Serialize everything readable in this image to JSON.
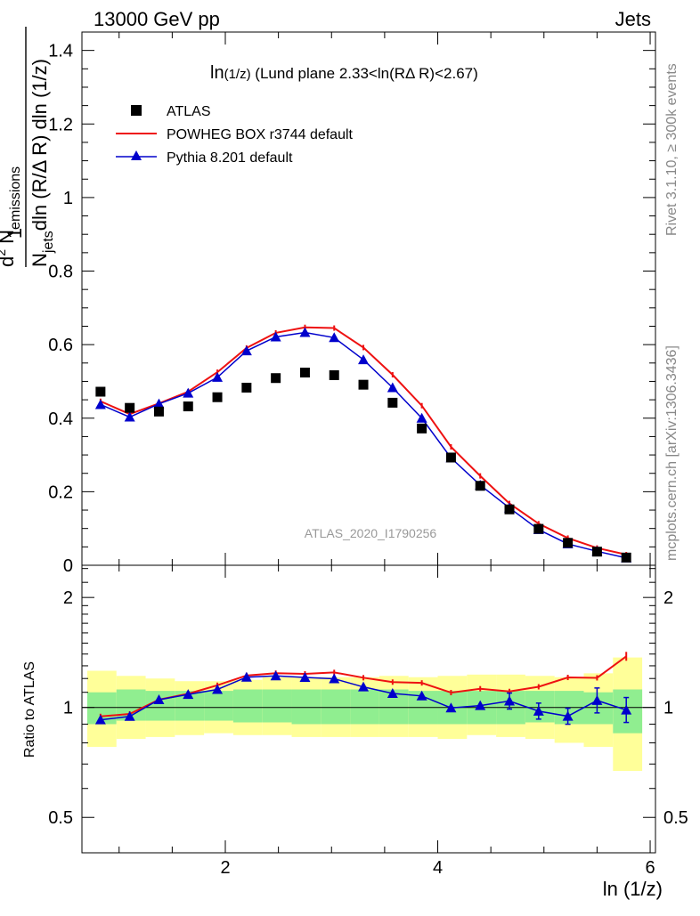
{
  "header": {
    "left": "13000 GeV pp",
    "right": "Jets"
  },
  "side_labels": {
    "rivet": "Rivet 3.1.10, ≥ 300k events",
    "mcplots": "mcplots.cern.ch [arXiv:1306.3436]"
  },
  "colors": {
    "atlas": "#000000",
    "powheg": "#ee1111",
    "pythia": "#0000cc",
    "band_inner": "#90ee90",
    "band_outer": "#ffff99"
  },
  "chart_data": [
    {
      "type": "scatter",
      "title_main": "ln",
      "title_sub": "(1/z)",
      "title_rest": " (Lund plane 2.33<ln(RΔ R)<2.67)",
      "ylabel_top": "1",
      "ylabel_bottom_a": "N",
      "ylabel_bottom_sub": "jets",
      "ylabel_bottom_b": "dln (R/Δ R) dln (1/z)",
      "ylabel_num_a": "d",
      "ylabel_num_sup": "2",
      "ylabel_num_b": " N",
      "ylabel_num_sub": "emissions",
      "watermark": "ATLAS_2020_I1790256",
      "ylim": [
        0,
        1.45
      ],
      "xlim": [
        0.65,
        6.05
      ],
      "y_ticks": [
        "0",
        "0.2",
        "0.4",
        "0.6",
        "0.8",
        "1",
        "1.2",
        "1.4"
      ],
      "legend_position": "top-left",
      "x": [
        0.825,
        1.1,
        1.375,
        1.65,
        1.925,
        2.2,
        2.475,
        2.75,
        3.025,
        3.3,
        3.575,
        3.85,
        4.125,
        4.4,
        4.675,
        4.95,
        5.225,
        5.5,
        5.775
      ],
      "series": [
        {
          "name": "ATLAS",
          "values": [
            0.472,
            0.428,
            0.418,
            0.432,
            0.457,
            0.483,
            0.509,
            0.524,
            0.517,
            0.491,
            0.442,
            0.372,
            0.293,
            0.216,
            0.152,
            0.099,
            0.061,
            0.037,
            0.021
          ]
        },
        {
          "name": "POWHEG BOX r3744 default",
          "values": [
            0.446,
            0.411,
            0.44,
            0.472,
            0.525,
            0.591,
            0.632,
            0.647,
            0.645,
            0.592,
            0.518,
            0.434,
            0.322,
            0.243,
            0.168,
            0.113,
            0.074,
            0.047,
            0.029
          ]
        },
        {
          "name": "Pythia 8.201 default",
          "values": [
            0.437,
            0.403,
            0.439,
            0.468,
            0.511,
            0.583,
            0.621,
            0.633,
            0.619,
            0.559,
            0.483,
            0.4,
            0.292,
            0.218,
            0.156,
            0.097,
            0.058,
            0.038,
            0.02
          ]
        }
      ]
    },
    {
      "type": "line",
      "ylabel": "Ratio to ATLAS",
      "xlabel": "ln (1/z)",
      "ylim": [
        0.4,
        2.45
      ],
      "y_scale": "log",
      "xlim": [
        0.65,
        6.05
      ],
      "x_ticks": [
        "2",
        "4",
        "6"
      ],
      "y_ticks": [
        "0.5",
        "1",
        "2"
      ],
      "x_edges": [
        0.7,
        0.975,
        1.25,
        1.525,
        1.8,
        2.075,
        2.35,
        2.625,
        2.9,
        3.175,
        3.45,
        3.725,
        4.0,
        4.275,
        4.55,
        4.825,
        5.1,
        5.375,
        5.65,
        5.925
      ],
      "band_inner": {
        "low": [
          0.9,
          0.92,
          0.92,
          0.92,
          0.92,
          0.91,
          0.91,
          0.9,
          0.9,
          0.9,
          0.9,
          0.9,
          0.9,
          0.9,
          0.9,
          0.91,
          0.9,
          0.9,
          0.85
        ],
        "high": [
          1.1,
          1.12,
          1.11,
          1.11,
          1.11,
          1.12,
          1.12,
          1.12,
          1.12,
          1.12,
          1.12,
          1.11,
          1.11,
          1.11,
          1.11,
          1.11,
          1.11,
          1.1,
          1.12
        ]
      },
      "band_outer": {
        "low": [
          0.78,
          0.82,
          0.83,
          0.84,
          0.85,
          0.84,
          0.84,
          0.83,
          0.83,
          0.83,
          0.83,
          0.83,
          0.82,
          0.84,
          0.83,
          0.82,
          0.8,
          0.78,
          0.67
        ],
        "high": [
          1.26,
          1.22,
          1.2,
          1.18,
          1.18,
          1.19,
          1.21,
          1.21,
          1.21,
          1.21,
          1.22,
          1.21,
          1.22,
          1.23,
          1.23,
          1.22,
          1.21,
          1.24,
          1.37
        ]
      },
      "x": [
        0.825,
        1.1,
        1.375,
        1.65,
        1.925,
        2.2,
        2.475,
        2.75,
        3.025,
        3.3,
        3.575,
        3.85,
        4.125,
        4.4,
        4.675,
        4.95,
        5.225,
        5.5,
        5.775
      ],
      "series": [
        {
          "name": "POWHEG BOX r3744 default",
          "values": [
            0.945,
            0.96,
            1.05,
            1.09,
            1.15,
            1.223,
            1.241,
            1.236,
            1.247,
            1.206,
            1.173,
            1.167,
            1.098,
            1.125,
            1.106,
            1.139,
            1.208,
            1.205,
            1.38
          ]
        },
        {
          "name": "Pythia 8.201 default",
          "values": [
            0.925,
            0.945,
            1.05,
            1.085,
            1.12,
            1.21,
            1.22,
            1.208,
            1.198,
            1.138,
            1.092,
            1.075,
            0.997,
            1.012,
            1.041,
            0.977,
            0.946,
            1.045,
            0.984
          ]
        }
      ]
    }
  ]
}
